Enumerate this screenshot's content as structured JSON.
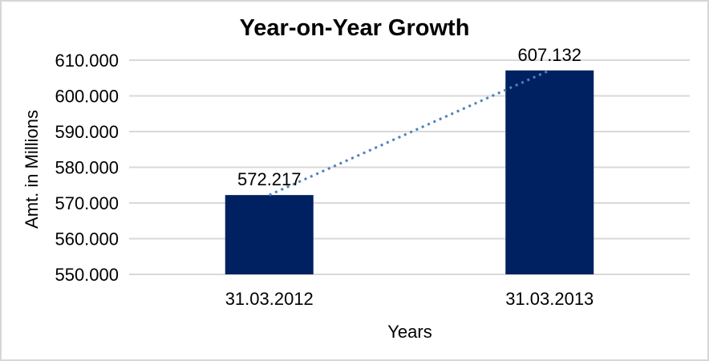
{
  "window": {
    "background": "#FFFFFF",
    "border_color": "#D6D6D6"
  },
  "chart_data": {
    "type": "bar",
    "title": "Year-on-Year Growth",
    "xlabel": "Years",
    "ylabel": "Amt. in Millions",
    "categories": [
      "31.03.2012",
      "31.03.2013"
    ],
    "values": [
      572.217,
      607.132
    ],
    "data_labels": [
      "572.217",
      "607.132"
    ],
    "ylim": [
      550,
      610
    ],
    "yticks": {
      "values": [
        550,
        560,
        570,
        580,
        590,
        600,
        610
      ],
      "labels": [
        "550.000",
        "560.000",
        "570.000",
        "580.000",
        "590.000",
        "600.000",
        "610.000"
      ]
    },
    "grid": true,
    "legend": false,
    "bar_color": "#002161",
    "gridline_color": "#D9D9D9",
    "label_color": "#000000",
    "trendline": {
      "type": "linear",
      "style": "dotted",
      "color": "#4F81BD",
      "from_category": "31.03.2012",
      "to_category": "31.03.2013"
    }
  }
}
